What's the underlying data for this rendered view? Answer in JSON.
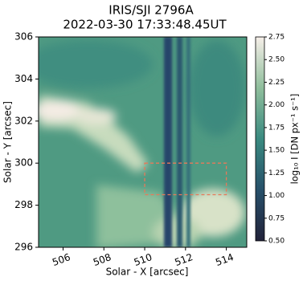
{
  "chart_data": {
    "type": "image",
    "title": "IRIS/SJI 2796A",
    "subtitle": "2022-03-30 17:33:48.45UT",
    "x_label": "Solar - X [arcsec]",
    "y_label": "Solar - Y [arcsec]",
    "xlim": [
      504.8,
      515
    ],
    "ylim": [
      296,
      306
    ],
    "xticks": [
      506,
      508,
      510,
      512,
      514
    ],
    "yticks": [
      296,
      298,
      300,
      302,
      304,
      306
    ],
    "box": {
      "x": [
        510,
        514
      ],
      "y": [
        298.5,
        300
      ],
      "color": "#e8795a"
    },
    "colorbar": {
      "label": "log₁₀ I [DN px⁻¹ s⁻¹]",
      "lim": [
        0.5,
        2.75
      ],
      "ticks": [
        {
          "value": 0.5,
          "label": "0.50"
        },
        {
          "value": 0.75,
          "label": "0.75"
        },
        {
          "value": 1.0,
          "label": "1.00"
        },
        {
          "value": 1.25,
          "label": "1.25"
        },
        {
          "value": 1.5,
          "label": "1.50"
        },
        {
          "value": 1.75,
          "label": "1.75"
        },
        {
          "value": 2.0,
          "label": "2.00"
        },
        {
          "value": 2.25,
          "label": "2.25"
        },
        {
          "value": 2.5,
          "label": "2.50"
        },
        {
          "value": 2.75,
          "label": "2.75"
        }
      ],
      "colormap": [
        "#22223a",
        "#27506a",
        "#3a8a80",
        "#8fbe9c",
        "#f6efe9"
      ]
    }
  }
}
